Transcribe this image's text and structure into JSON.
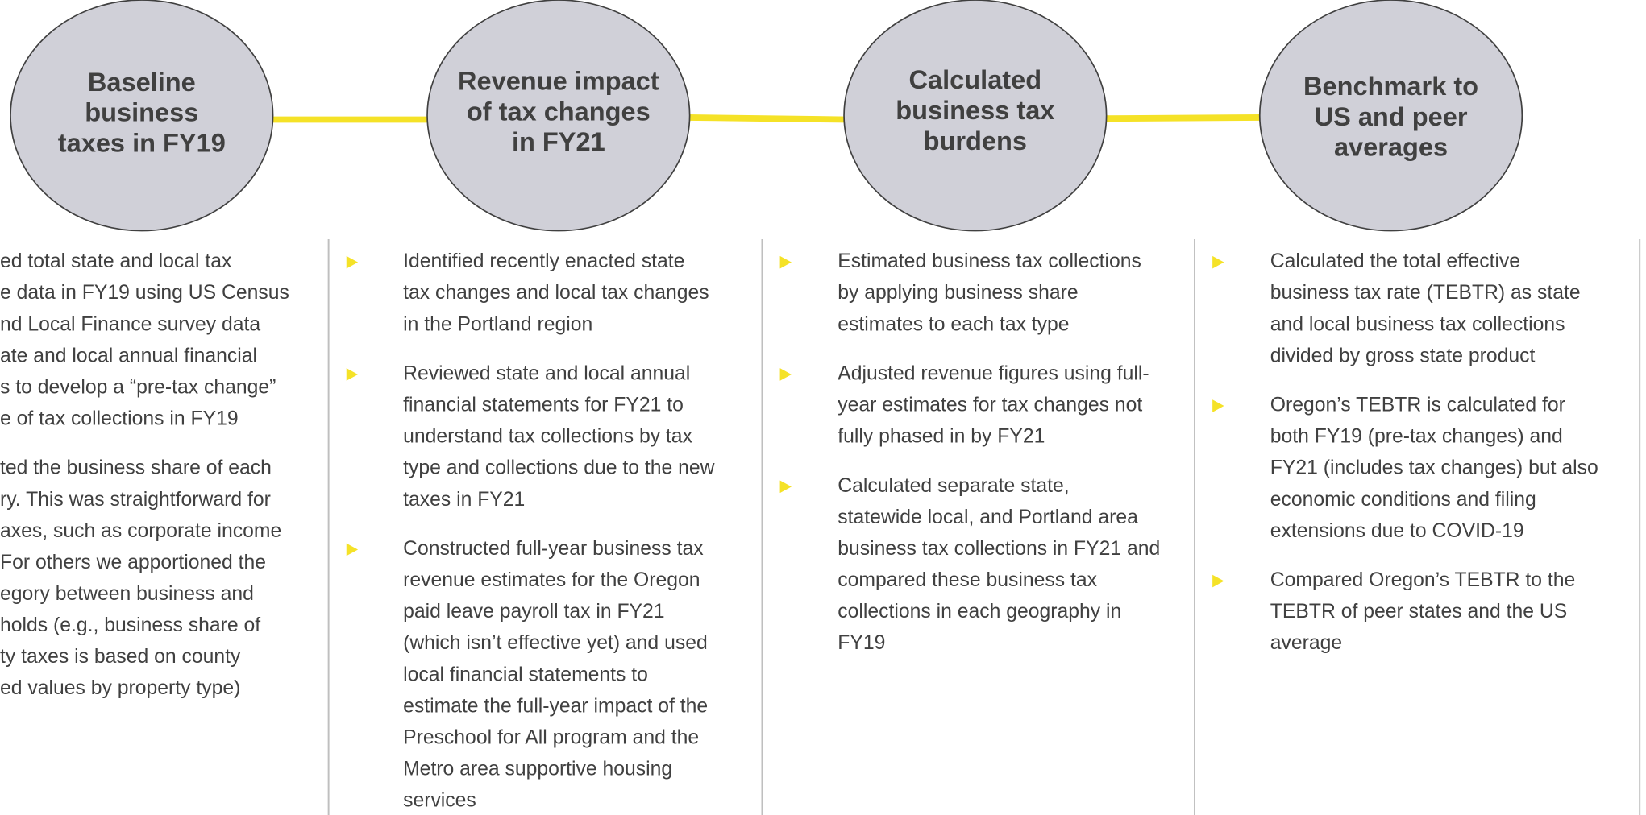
{
  "steps": [
    {
      "title": [
        "Baseline",
        "business",
        "taxes in FY19"
      ],
      "bullets": [
        [
          "ed total state and local tax",
          "e data in FY19 using US Census",
          "nd Local Finance survey data",
          "ate and local annual financial",
          "s to develop a “pre-tax change”",
          "e of tax collections in FY19"
        ],
        [
          "ted the business share of each",
          "ry. This was straightforward for",
          "axes, such as corporate income",
          "For others we apportioned the",
          "egory between business and",
          "holds (e.g., business share of",
          "ty taxes is based on county",
          "ed values by property type)"
        ]
      ]
    },
    {
      "title": [
        "Revenue impact",
        "of tax changes",
        "in FY21"
      ],
      "bullets": [
        [
          "Identified recently enacted state",
          "tax changes and local tax changes",
          "in the Portland region"
        ],
        [
          "Reviewed state and local annual",
          "financial statements for FY21 to",
          "understand tax collections by tax",
          "type and collections due to the new",
          "taxes in FY21"
        ],
        [
          "Constructed full-year business tax",
          "revenue estimates for the Oregon",
          "paid leave payroll tax in FY21",
          "(which isn’t effective yet) and used",
          "local financial statements to",
          "estimate the full-year impact of the",
          "Preschool for All program and the",
          "Metro area supportive housing",
          "services"
        ]
      ]
    },
    {
      "title": [
        "Calculated",
        "business tax",
        "burdens"
      ],
      "bullets": [
        [
          "Estimated business tax collections",
          "by applying business share",
          "estimates to each tax type"
        ],
        [
          "Adjusted revenue figures using full-",
          "year estimates for tax changes not",
          "fully phased in by FY21"
        ],
        [
          "Calculated separate state,",
          "statewide local, and Portland area",
          "business tax collections in FY21 and",
          "compared these business tax",
          "collections in each geography in",
          "FY19"
        ]
      ]
    },
    {
      "title": [
        "Benchmark to",
        "US and peer",
        "averages"
      ],
      "bullets": [
        [
          "Calculated the total effective",
          "business tax rate (TEBTR) as state",
          "and local business tax collections",
          "divided by gross state product"
        ],
        [
          "Oregon’s TEBTR is calculated for",
          "both FY19 (pre-tax changes) and",
          "FY21 (includes tax changes) but also",
          "economic conditions and filing",
          "extensions due to COVID-19"
        ],
        [
          "Compared Oregon’s TEBTR to the",
          "TEBTR of peer states and the US",
          "average"
        ]
      ]
    }
  ]
}
